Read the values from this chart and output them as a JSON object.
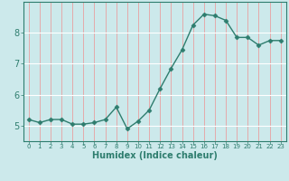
{
  "x": [
    0,
    1,
    2,
    3,
    4,
    5,
    6,
    7,
    8,
    9,
    10,
    11,
    12,
    13,
    14,
    15,
    16,
    17,
    18,
    19,
    20,
    21,
    22,
    23
  ],
  "y": [
    5.2,
    5.1,
    5.2,
    5.2,
    5.05,
    5.05,
    5.1,
    5.2,
    5.6,
    4.9,
    5.15,
    5.5,
    6.2,
    6.85,
    7.45,
    8.25,
    8.6,
    8.55,
    8.4,
    7.85,
    7.85,
    7.6,
    7.75,
    7.75
  ],
  "line_color": "#2e7d6e",
  "marker": "D",
  "marker_size": 2.5,
  "line_width": 1.0,
  "bg_color": "#cce9eb",
  "grid_color": "#ffffff",
  "grid_color_v": "#e8b0b0",
  "axis_color": "#2e7d6e",
  "tick_color": "#2e7d6e",
  "xlabel": "Humidex (Indice chaleur)",
  "xlabel_fontsize": 7,
  "ylabel_ticks": [
    5,
    6,
    7,
    8
  ],
  "xlim": [
    -0.5,
    23.5
  ],
  "ylim": [
    4.5,
    9.0
  ],
  "figsize": [
    3.2,
    2.0
  ],
  "dpi": 100
}
